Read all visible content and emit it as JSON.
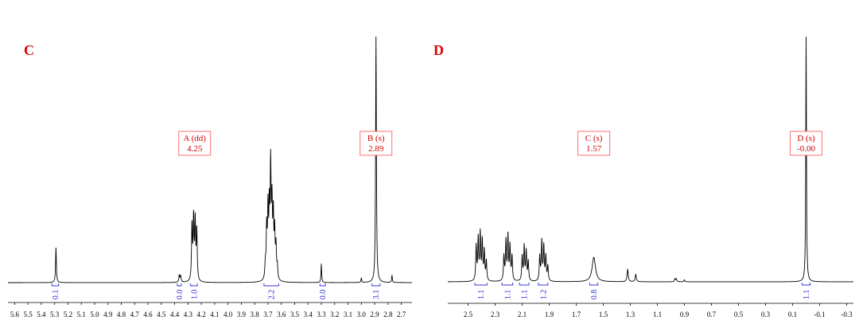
{
  "chart_data": [
    {
      "type": "line",
      "panel_label": "C",
      "xlim": [
        5.65,
        2.62
      ],
      "x_reversed": true,
      "ticks": [
        5.6,
        5.5,
        5.4,
        5.3,
        5.2,
        5.1,
        5.0,
        4.9,
        4.8,
        4.7,
        4.6,
        4.5,
        4.4,
        4.3,
        4.2,
        4.1,
        4.0,
        3.9,
        3.8,
        3.7,
        3.6,
        3.5,
        3.4,
        3.3,
        3.2,
        3.1,
        3.0,
        2.9,
        2.8,
        2.7
      ],
      "tick_labels": [
        "5.6",
        "5.5",
        "5.4",
        "5.3",
        "5.2",
        "5.1",
        "5.0",
        "4.9",
        "4.8",
        "4.7",
        "4.6",
        "4.5",
        "4.4",
        "4.3",
        "4.2",
        "4.1",
        "4.0",
        "3.9",
        "3.8",
        "3.7",
        "3.6",
        "3.5",
        "3.4",
        "3.3",
        "3.2",
        "3.1",
        "3.0",
        "2.9",
        "2.8",
        "2.7"
      ],
      "peak_labels": [
        {
          "line1": "A (dd)",
          "line2": "4.25",
          "ppm": 4.25
        },
        {
          "line1": "B (s)",
          "line2": "2.89",
          "ppm": 2.89
        }
      ],
      "integrals": [
        {
          "value": "0.1",
          "from": 5.32,
          "to": 5.27
        },
        {
          "value": "0.0",
          "from": 4.38,
          "to": 4.35
        },
        {
          "value": "1.0",
          "from": 4.28,
          "to": 4.23
        },
        {
          "value": "2.2",
          "from": 3.73,
          "to": 3.62
        },
        {
          "value": "0.0",
          "from": 3.31,
          "to": 3.27
        },
        {
          "value": "3.1",
          "from": 2.92,
          "to": 2.86
        }
      ],
      "peaks": [
        {
          "ppm": 5.29,
          "height": 0.142,
          "width": 0.0035
        },
        {
          "ppm": 4.365,
          "height": 0.028,
          "width": 0.004
        },
        {
          "ppm": 4.355,
          "height": 0.025,
          "width": 0.004
        },
        {
          "ppm": 4.27,
          "height": 0.22,
          "width": 0.004
        },
        {
          "ppm": 4.258,
          "height": 0.245,
          "width": 0.004
        },
        {
          "ppm": 4.246,
          "height": 0.235,
          "width": 0.004
        },
        {
          "ppm": 4.234,
          "height": 0.2,
          "width": 0.004
        },
        {
          "ppm": 3.72,
          "height": 0.06,
          "width": 0.004
        },
        {
          "ppm": 3.71,
          "height": 0.2,
          "width": 0.004
        },
        {
          "ppm": 3.7,
          "height": 0.27,
          "width": 0.004
        },
        {
          "ppm": 3.69,
          "height": 0.26,
          "width": 0.004
        },
        {
          "ppm": 3.68,
          "height": 0.44,
          "width": 0.004
        },
        {
          "ppm": 3.67,
          "height": 0.28,
          "width": 0.004
        },
        {
          "ppm": 3.66,
          "height": 0.24,
          "width": 0.004
        },
        {
          "ppm": 3.65,
          "height": 0.18,
          "width": 0.004
        },
        {
          "ppm": 3.64,
          "height": 0.13,
          "width": 0.004
        },
        {
          "ppm": 3.63,
          "height": 0.05,
          "width": 0.004
        },
        {
          "ppm": 3.3,
          "height": 0.075,
          "width": 0.003
        },
        {
          "ppm": 3.0,
          "height": 0.018,
          "width": 0.003
        },
        {
          "ppm": 2.89,
          "height": 1.0,
          "width": 0.0035
        },
        {
          "ppm": 2.77,
          "height": 0.03,
          "width": 0.003
        }
      ]
    },
    {
      "type": "line",
      "panel_label": "D",
      "xlim": [
        2.65,
        -0.35
      ],
      "x_reversed": true,
      "ticks": [
        2.5,
        2.3,
        2.1,
        1.9,
        1.7,
        1.5,
        1.3,
        1.1,
        0.9,
        0.7,
        0.5,
        0.3,
        0.1,
        -0.1,
        -0.3
      ],
      "tick_labels": [
        "2.5",
        "2.3",
        "2.1",
        "1.9",
        "1.7",
        "1.5",
        "1.3",
        "1.1",
        "0.9",
        "0.7",
        "0.5",
        "0.3",
        "0.1",
        "-0.1",
        "-0.3"
      ],
      "peak_labels": [
        {
          "line1": "C (s)",
          "line2": "1.57",
          "ppm": 1.57
        },
        {
          "line1": "D (s)",
          "line2": "-0.00",
          "ppm": 0.0
        }
      ],
      "integrals": [
        {
          "value": "1.1",
          "from": 2.45,
          "to": 2.36
        },
        {
          "value": "1.1",
          "from": 2.25,
          "to": 2.17
        },
        {
          "value": "1.1",
          "from": 2.12,
          "to": 2.05
        },
        {
          "value": "1.2",
          "from": 1.98,
          "to": 1.91
        },
        {
          "value": "0.8",
          "from": 1.6,
          "to": 1.54
        },
        {
          "value": "1.1",
          "from": 0.03,
          "to": -0.03
        }
      ],
      "peaks": [
        {
          "ppm": 2.44,
          "height": 0.14,
          "width": 0.004
        },
        {
          "ppm": 2.425,
          "height": 0.17,
          "width": 0.004
        },
        {
          "ppm": 2.41,
          "height": 0.19,
          "width": 0.004
        },
        {
          "ppm": 2.395,
          "height": 0.16,
          "width": 0.004
        },
        {
          "ppm": 2.38,
          "height": 0.12,
          "width": 0.004
        },
        {
          "ppm": 2.365,
          "height": 0.08,
          "width": 0.004
        },
        {
          "ppm": 2.235,
          "height": 0.1,
          "width": 0.004
        },
        {
          "ppm": 2.22,
          "height": 0.16,
          "width": 0.004
        },
        {
          "ppm": 2.205,
          "height": 0.18,
          "width": 0.004
        },
        {
          "ppm": 2.19,
          "height": 0.14,
          "width": 0.004
        },
        {
          "ppm": 2.175,
          "height": 0.1,
          "width": 0.004
        },
        {
          "ppm": 2.1,
          "height": 0.1,
          "width": 0.004
        },
        {
          "ppm": 2.085,
          "height": 0.14,
          "width": 0.004
        },
        {
          "ppm": 2.07,
          "height": 0.12,
          "width": 0.004
        },
        {
          "ppm": 2.055,
          "height": 0.08,
          "width": 0.004
        },
        {
          "ppm": 1.97,
          "height": 0.1,
          "width": 0.004
        },
        {
          "ppm": 1.955,
          "height": 0.16,
          "width": 0.004
        },
        {
          "ppm": 1.94,
          "height": 0.14,
          "width": 0.004
        },
        {
          "ppm": 1.925,
          "height": 0.1,
          "width": 0.004
        },
        {
          "ppm": 1.91,
          "height": 0.06,
          "width": 0.004
        },
        {
          "ppm": 1.57,
          "height": 0.1,
          "width": 0.015
        },
        {
          "ppm": 1.32,
          "height": 0.05,
          "width": 0.005
        },
        {
          "ppm": 1.26,
          "height": 0.03,
          "width": 0.005
        },
        {
          "ppm": 0.97,
          "height": 0.012,
          "width": 0.004
        },
        {
          "ppm": 0.96,
          "height": 0.012,
          "width": 0.004
        },
        {
          "ppm": 0.9,
          "height": 0.008,
          "width": 0.004
        },
        {
          "ppm": 0.0,
          "height": 1.0,
          "width": 0.003
        }
      ]
    }
  ]
}
